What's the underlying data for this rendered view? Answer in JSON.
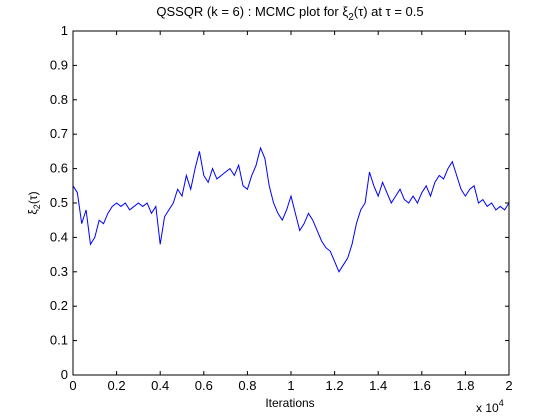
{
  "chart_data": {
    "type": "line",
    "title_prefix": "QSSQR (k = 6) : MCMC plot for ",
    "title_symbol_base": "ξ",
    "title_symbol_sub": "2",
    "title_suffix": "(τ) at τ = 0.5",
    "xlabel": "Iterations",
    "ylabel_base": "ξ",
    "ylabel_sub": "2",
    "ylabel_suffix": "(τ)",
    "x_exponent_label": "x 10",
    "x_exponent_power": "4",
    "xlim": [
      0,
      2
    ],
    "ylim": [
      0,
      1
    ],
    "xticks": [
      0,
      0.2,
      0.4,
      0.6,
      0.8,
      1,
      1.2,
      1.4,
      1.6,
      1.8,
      2
    ],
    "xtick_labels": [
      "0",
      "0.2",
      "0.4",
      "0.6",
      "0.8",
      "1",
      "1.2",
      "1.4",
      "1.6",
      "1.8",
      "2"
    ],
    "yticks": [
      0,
      0.1,
      0.2,
      0.3,
      0.4,
      0.5,
      0.6,
      0.7,
      0.8,
      0.9,
      1
    ],
    "ytick_labels": [
      "0",
      "0.1",
      "0.2",
      "0.3",
      "0.4",
      "0.5",
      "0.6",
      "0.7",
      "0.8",
      "0.9",
      "1"
    ],
    "grid": false,
    "line_color": "#0000ff",
    "series": [
      {
        "x": [
          0,
          0.02,
          0.04,
          0.06,
          0.08,
          0.1,
          0.12,
          0.14,
          0.16,
          0.18,
          0.2,
          0.22,
          0.24,
          0.26,
          0.28,
          0.3,
          0.32,
          0.34,
          0.36,
          0.38,
          0.4,
          0.42,
          0.44,
          0.46,
          0.48,
          0.5,
          0.52,
          0.54,
          0.56,
          0.58,
          0.6,
          0.62,
          0.64,
          0.66,
          0.68,
          0.7,
          0.72,
          0.74,
          0.76,
          0.78,
          0.8,
          0.82,
          0.84,
          0.86,
          0.88,
          0.9,
          0.92,
          0.94,
          0.96,
          0.98,
          1.0,
          1.02,
          1.04,
          1.06,
          1.08,
          1.1,
          1.12,
          1.14,
          1.16,
          1.18,
          1.2,
          1.22,
          1.24,
          1.26,
          1.28,
          1.3,
          1.32,
          1.34,
          1.36,
          1.38,
          1.4,
          1.42,
          1.44,
          1.46,
          1.48,
          1.5,
          1.52,
          1.54,
          1.56,
          1.58,
          1.6,
          1.62,
          1.64,
          1.66,
          1.68,
          1.7,
          1.72,
          1.74,
          1.76,
          1.78,
          1.8,
          1.82,
          1.84,
          1.86,
          1.88,
          1.9,
          1.92,
          1.94,
          1.96,
          1.98,
          2.0
        ],
        "y": [
          0.55,
          0.53,
          0.44,
          0.48,
          0.38,
          0.4,
          0.45,
          0.44,
          0.47,
          0.49,
          0.5,
          0.49,
          0.5,
          0.48,
          0.49,
          0.5,
          0.49,
          0.5,
          0.47,
          0.49,
          0.38,
          0.46,
          0.48,
          0.5,
          0.54,
          0.52,
          0.58,
          0.54,
          0.6,
          0.65,
          0.58,
          0.56,
          0.6,
          0.57,
          0.58,
          0.59,
          0.6,
          0.58,
          0.61,
          0.55,
          0.54,
          0.58,
          0.61,
          0.66,
          0.63,
          0.55,
          0.5,
          0.47,
          0.45,
          0.48,
          0.52,
          0.47,
          0.42,
          0.44,
          0.47,
          0.45,
          0.42,
          0.39,
          0.37,
          0.36,
          0.33,
          0.3,
          0.32,
          0.34,
          0.38,
          0.44,
          0.48,
          0.5,
          0.59,
          0.55,
          0.52,
          0.56,
          0.53,
          0.5,
          0.52,
          0.54,
          0.51,
          0.5,
          0.52,
          0.5,
          0.53,
          0.55,
          0.52,
          0.56,
          0.58,
          0.57,
          0.6,
          0.62,
          0.58,
          0.54,
          0.52,
          0.54,
          0.55,
          0.5,
          0.51,
          0.49,
          0.5,
          0.48,
          0.49,
          0.48,
          0.5
        ]
      }
    ]
  }
}
